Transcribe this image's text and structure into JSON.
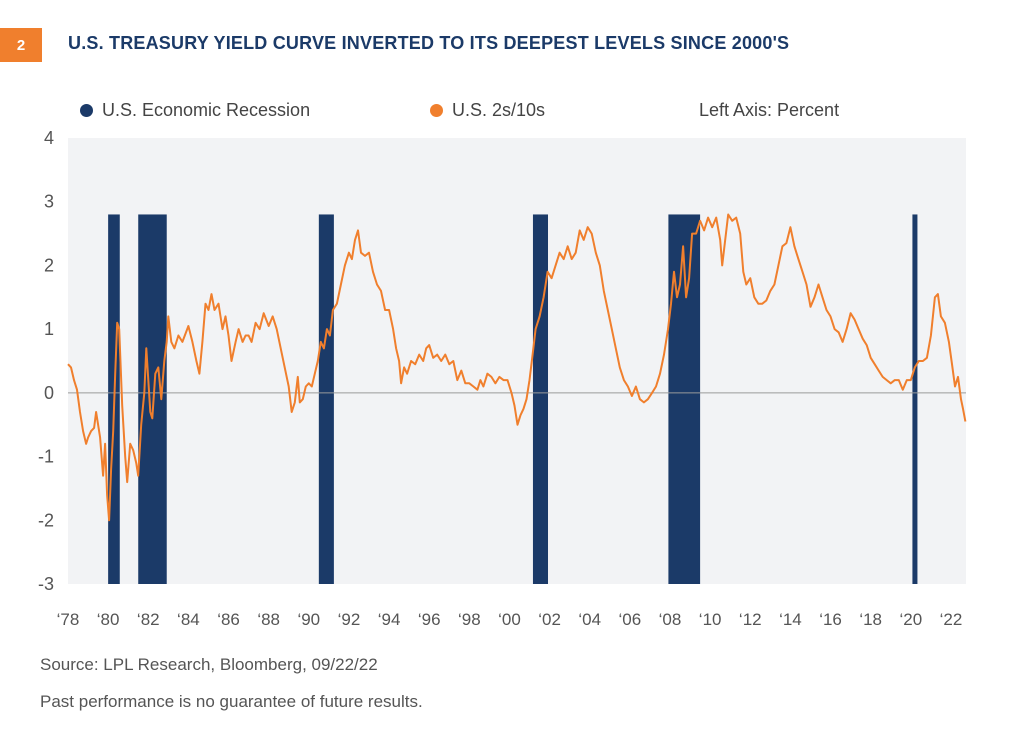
{
  "header": {
    "figure_number": "2",
    "title": "U.S. TREASURY YIELD CURVE INVERTED TO ITS DEEPEST LEVELS SINCE 2000'S"
  },
  "colors": {
    "accent": "#F07F2D",
    "navy": "#1B3A68",
    "plot_bg": "#F2F3F5"
  },
  "chart_data": {
    "type": "line",
    "title": "U.S. TREASURY YIELD CURVE INVERTED TO ITS DEEPEST LEVELS SINCE 2000'S",
    "legend": [
      {
        "label": "U.S. Economic Recession",
        "color": "#1B3A68"
      },
      {
        "label": "U.S. 2s/10s",
        "color": "#F07F2D"
      }
    ],
    "axis_note": "Left Axis: Percent",
    "ylim": [
      -3,
      4
    ],
    "yticks": [
      "4",
      "3",
      "2",
      "1",
      "0",
      "-1",
      "-2",
      "-3"
    ],
    "xlim": [
      1978.0,
      2022.75
    ],
    "xticks": [
      {
        "year": 1978,
        "label": "‘78"
      },
      {
        "year": 1980,
        "label": "‘80"
      },
      {
        "year": 1982,
        "label": "‘82"
      },
      {
        "year": 1984,
        "label": "‘84"
      },
      {
        "year": 1986,
        "label": "‘86"
      },
      {
        "year": 1988,
        "label": "‘88"
      },
      {
        "year": 1990,
        "label": "‘90"
      },
      {
        "year": 1992,
        "label": "‘92"
      },
      {
        "year": 1994,
        "label": "‘94"
      },
      {
        "year": 1996,
        "label": "‘96"
      },
      {
        "year": 1998,
        "label": "‘98"
      },
      {
        "year": 2000,
        "label": "‘00"
      },
      {
        "year": 2002,
        "label": "‘02"
      },
      {
        "year": 2004,
        "label": "‘04"
      },
      {
        "year": 2006,
        "label": "‘06"
      },
      {
        "year": 2008,
        "label": "‘08"
      },
      {
        "year": 2010,
        "label": "‘10"
      },
      {
        "year": 2012,
        "label": "‘12"
      },
      {
        "year": 2014,
        "label": "‘14"
      },
      {
        "year": 2016,
        "label": "‘16"
      },
      {
        "year": 2018,
        "label": "‘18"
      },
      {
        "year": 2020,
        "label": "‘20"
      },
      {
        "year": 2022,
        "label": "‘22"
      }
    ],
    "recessions": [
      {
        "start": 1980.0,
        "end": 1980.58,
        "top": 2.8
      },
      {
        "start": 1981.5,
        "end": 1982.92,
        "top": 2.8
      },
      {
        "start": 1990.5,
        "end": 1991.25,
        "top": 2.8
      },
      {
        "start": 2001.17,
        "end": 2001.92,
        "top": 2.8
      },
      {
        "start": 2007.92,
        "end": 2009.5,
        "top": 2.8
      },
      {
        "start": 2020.08,
        "end": 2020.33,
        "top": 2.8
      }
    ],
    "series": [
      {
        "name": "U.S. 2s/10s",
        "color": "#F07F2D",
        "points": [
          [
            1978.0,
            0.45
          ],
          [
            1978.15,
            0.4
          ],
          [
            1978.3,
            0.2
          ],
          [
            1978.45,
            0.05
          ],
          [
            1978.6,
            -0.3
          ],
          [
            1978.75,
            -0.6
          ],
          [
            1978.9,
            -0.8
          ],
          [
            1979.0,
            -0.7
          ],
          [
            1979.15,
            -0.6
          ],
          [
            1979.3,
            -0.55
          ],
          [
            1979.4,
            -0.3
          ],
          [
            1979.5,
            -0.5
          ],
          [
            1979.6,
            -0.7
          ],
          [
            1979.75,
            -1.3
          ],
          [
            1979.85,
            -0.8
          ],
          [
            1979.95,
            -1.6
          ],
          [
            1980.05,
            -2.0
          ],
          [
            1980.15,
            -1.2
          ],
          [
            1980.25,
            -0.6
          ],
          [
            1980.35,
            0.3
          ],
          [
            1980.45,
            1.1
          ],
          [
            1980.55,
            1.0
          ],
          [
            1980.7,
            -0.2
          ],
          [
            1980.85,
            -1.0
          ],
          [
            1980.95,
            -1.4
          ],
          [
            1981.1,
            -0.8
          ],
          [
            1981.25,
            -0.9
          ],
          [
            1981.4,
            -1.1
          ],
          [
            1981.5,
            -1.3
          ],
          [
            1981.65,
            -0.5
          ],
          [
            1981.8,
            0.0
          ],
          [
            1981.9,
            0.7
          ],
          [
            1982.0,
            0.2
          ],
          [
            1982.1,
            -0.3
          ],
          [
            1982.2,
            -0.4
          ],
          [
            1982.35,
            0.3
          ],
          [
            1982.5,
            0.4
          ],
          [
            1982.65,
            -0.1
          ],
          [
            1982.8,
            0.5
          ],
          [
            1982.92,
            0.8
          ],
          [
            1983.0,
            1.2
          ],
          [
            1983.15,
            0.8
          ],
          [
            1983.3,
            0.7
          ],
          [
            1983.5,
            0.9
          ],
          [
            1983.7,
            0.8
          ],
          [
            1984.0,
            1.05
          ],
          [
            1984.2,
            0.8
          ],
          [
            1984.4,
            0.5
          ],
          [
            1984.55,
            0.3
          ],
          [
            1984.7,
            0.8
          ],
          [
            1984.85,
            1.4
          ],
          [
            1985.0,
            1.3
          ],
          [
            1985.15,
            1.55
          ],
          [
            1985.3,
            1.3
          ],
          [
            1985.5,
            1.4
          ],
          [
            1985.7,
            1.0
          ],
          [
            1985.85,
            1.2
          ],
          [
            1986.0,
            0.9
          ],
          [
            1986.15,
            0.5
          ],
          [
            1986.35,
            0.8
          ],
          [
            1986.5,
            1.0
          ],
          [
            1986.7,
            0.8
          ],
          [
            1986.85,
            0.9
          ],
          [
            1987.0,
            0.9
          ],
          [
            1987.15,
            0.8
          ],
          [
            1987.35,
            1.1
          ],
          [
            1987.55,
            1.0
          ],
          [
            1987.75,
            1.25
          ],
          [
            1988.0,
            1.05
          ],
          [
            1988.2,
            1.2
          ],
          [
            1988.4,
            1.0
          ],
          [
            1988.6,
            0.7
          ],
          [
            1988.8,
            0.4
          ],
          [
            1989.0,
            0.1
          ],
          [
            1989.15,
            -0.3
          ],
          [
            1989.3,
            -0.15
          ],
          [
            1989.45,
            0.25
          ],
          [
            1989.55,
            -0.15
          ],
          [
            1989.7,
            -0.1
          ],
          [
            1989.85,
            0.1
          ],
          [
            1990.0,
            0.15
          ],
          [
            1990.15,
            0.1
          ],
          [
            1990.3,
            0.3
          ],
          [
            1990.45,
            0.5
          ],
          [
            1990.6,
            0.8
          ],
          [
            1990.75,
            0.7
          ],
          [
            1990.9,
            1.0
          ],
          [
            1991.05,
            0.9
          ],
          [
            1991.2,
            1.3
          ],
          [
            1991.4,
            1.4
          ],
          [
            1991.6,
            1.7
          ],
          [
            1991.8,
            2.0
          ],
          [
            1992.0,
            2.2
          ],
          [
            1992.15,
            2.1
          ],
          [
            1992.3,
            2.4
          ],
          [
            1992.45,
            2.55
          ],
          [
            1992.6,
            2.2
          ],
          [
            1992.8,
            2.15
          ],
          [
            1993.0,
            2.2
          ],
          [
            1993.2,
            1.9
          ],
          [
            1993.4,
            1.7
          ],
          [
            1993.6,
            1.6
          ],
          [
            1993.8,
            1.3
          ],
          [
            1994.0,
            1.3
          ],
          [
            1994.2,
            1.0
          ],
          [
            1994.35,
            0.7
          ],
          [
            1994.5,
            0.5
          ],
          [
            1994.6,
            0.15
          ],
          [
            1994.75,
            0.4
          ],
          [
            1994.9,
            0.3
          ],
          [
            1995.1,
            0.5
          ],
          [
            1995.3,
            0.45
          ],
          [
            1995.5,
            0.6
          ],
          [
            1995.7,
            0.5
          ],
          [
            1995.85,
            0.7
          ],
          [
            1996.0,
            0.75
          ],
          [
            1996.2,
            0.55
          ],
          [
            1996.4,
            0.6
          ],
          [
            1996.6,
            0.5
          ],
          [
            1996.8,
            0.6
          ],
          [
            1997.0,
            0.45
          ],
          [
            1997.2,
            0.5
          ],
          [
            1997.4,
            0.2
          ],
          [
            1997.6,
            0.35
          ],
          [
            1997.8,
            0.15
          ],
          [
            1998.0,
            0.15
          ],
          [
            1998.2,
            0.1
          ],
          [
            1998.4,
            0.05
          ],
          [
            1998.55,
            0.2
          ],
          [
            1998.7,
            0.1
          ],
          [
            1998.9,
            0.3
          ],
          [
            1999.1,
            0.25
          ],
          [
            1999.3,
            0.15
          ],
          [
            1999.5,
            0.25
          ],
          [
            1999.7,
            0.2
          ],
          [
            1999.9,
            0.2
          ],
          [
            2000.1,
            0.0
          ],
          [
            2000.25,
            -0.2
          ],
          [
            2000.4,
            -0.5
          ],
          [
            2000.55,
            -0.35
          ],
          [
            2000.7,
            -0.25
          ],
          [
            2000.85,
            -0.1
          ],
          [
            2001.0,
            0.2
          ],
          [
            2001.15,
            0.6
          ],
          [
            2001.3,
            1.0
          ],
          [
            2001.5,
            1.2
          ],
          [
            2001.7,
            1.5
          ],
          [
            2001.9,
            1.9
          ],
          [
            2002.1,
            1.8
          ],
          [
            2002.3,
            2.0
          ],
          [
            2002.5,
            2.2
          ],
          [
            2002.7,
            2.1
          ],
          [
            2002.9,
            2.3
          ],
          [
            2003.1,
            2.1
          ],
          [
            2003.3,
            2.2
          ],
          [
            2003.5,
            2.55
          ],
          [
            2003.7,
            2.4
          ],
          [
            2003.9,
            2.6
          ],
          [
            2004.1,
            2.5
          ],
          [
            2004.3,
            2.2
          ],
          [
            2004.5,
            2.0
          ],
          [
            2004.7,
            1.6
          ],
          [
            2004.9,
            1.3
          ],
          [
            2005.1,
            1.0
          ],
          [
            2005.3,
            0.7
          ],
          [
            2005.5,
            0.4
          ],
          [
            2005.7,
            0.2
          ],
          [
            2005.9,
            0.1
          ],
          [
            2006.1,
            -0.05
          ],
          [
            2006.3,
            0.1
          ],
          [
            2006.5,
            -0.1
          ],
          [
            2006.7,
            -0.15
          ],
          [
            2006.9,
            -0.1
          ],
          [
            2007.1,
            0.0
          ],
          [
            2007.3,
            0.1
          ],
          [
            2007.5,
            0.3
          ],
          [
            2007.7,
            0.6
          ],
          [
            2007.9,
            1.0
          ],
          [
            2008.05,
            1.4
          ],
          [
            2008.2,
            1.9
          ],
          [
            2008.35,
            1.5
          ],
          [
            2008.5,
            1.7
          ],
          [
            2008.65,
            2.3
          ],
          [
            2008.8,
            1.5
          ],
          [
            2008.95,
            1.8
          ],
          [
            2009.1,
            2.5
          ],
          [
            2009.3,
            2.5
          ],
          [
            2009.5,
            2.7
          ],
          [
            2009.7,
            2.55
          ],
          [
            2009.9,
            2.75
          ],
          [
            2010.1,
            2.6
          ],
          [
            2010.3,
            2.75
          ],
          [
            2010.5,
            2.4
          ],
          [
            2010.6,
            2.0
          ],
          [
            2010.75,
            2.4
          ],
          [
            2010.9,
            2.8
          ],
          [
            2011.1,
            2.7
          ],
          [
            2011.3,
            2.75
          ],
          [
            2011.5,
            2.5
          ],
          [
            2011.65,
            1.9
          ],
          [
            2011.8,
            1.7
          ],
          [
            2012.0,
            1.8
          ],
          [
            2012.2,
            1.5
          ],
          [
            2012.4,
            1.4
          ],
          [
            2012.6,
            1.4
          ],
          [
            2012.8,
            1.45
          ],
          [
            2013.0,
            1.6
          ],
          [
            2013.2,
            1.7
          ],
          [
            2013.4,
            2.0
          ],
          [
            2013.6,
            2.3
          ],
          [
            2013.8,
            2.35
          ],
          [
            2014.0,
            2.6
          ],
          [
            2014.2,
            2.3
          ],
          [
            2014.4,
            2.1
          ],
          [
            2014.6,
            1.9
          ],
          [
            2014.8,
            1.7
          ],
          [
            2015.0,
            1.35
          ],
          [
            2015.2,
            1.5
          ],
          [
            2015.4,
            1.7
          ],
          [
            2015.6,
            1.5
          ],
          [
            2015.8,
            1.3
          ],
          [
            2016.0,
            1.2
          ],
          [
            2016.2,
            1.0
          ],
          [
            2016.4,
            0.95
          ],
          [
            2016.6,
            0.8
          ],
          [
            2016.8,
            1.0
          ],
          [
            2017.0,
            1.25
          ],
          [
            2017.2,
            1.15
          ],
          [
            2017.4,
            1.0
          ],
          [
            2017.6,
            0.85
          ],
          [
            2017.8,
            0.75
          ],
          [
            2018.0,
            0.55
          ],
          [
            2018.2,
            0.45
          ],
          [
            2018.4,
            0.35
          ],
          [
            2018.6,
            0.25
          ],
          [
            2018.8,
            0.2
          ],
          [
            2019.0,
            0.15
          ],
          [
            2019.2,
            0.2
          ],
          [
            2019.4,
            0.2
          ],
          [
            2019.6,
            0.05
          ],
          [
            2019.8,
            0.2
          ],
          [
            2020.0,
            0.2
          ],
          [
            2020.2,
            0.4
          ],
          [
            2020.4,
            0.5
          ],
          [
            2020.6,
            0.5
          ],
          [
            2020.8,
            0.55
          ],
          [
            2021.0,
            0.9
          ],
          [
            2021.2,
            1.5
          ],
          [
            2021.35,
            1.55
          ],
          [
            2021.5,
            1.2
          ],
          [
            2021.7,
            1.1
          ],
          [
            2021.9,
            0.8
          ],
          [
            2022.05,
            0.45
          ],
          [
            2022.2,
            0.1
          ],
          [
            2022.35,
            0.25
          ],
          [
            2022.5,
            -0.1
          ],
          [
            2022.6,
            -0.25
          ],
          [
            2022.72,
            -0.45
          ]
        ]
      }
    ]
  },
  "footer": {
    "source": "Source:  LPL Research, Bloomberg,  09/22/22",
    "disclaimer": "Past performance is no guarantee of future results."
  }
}
